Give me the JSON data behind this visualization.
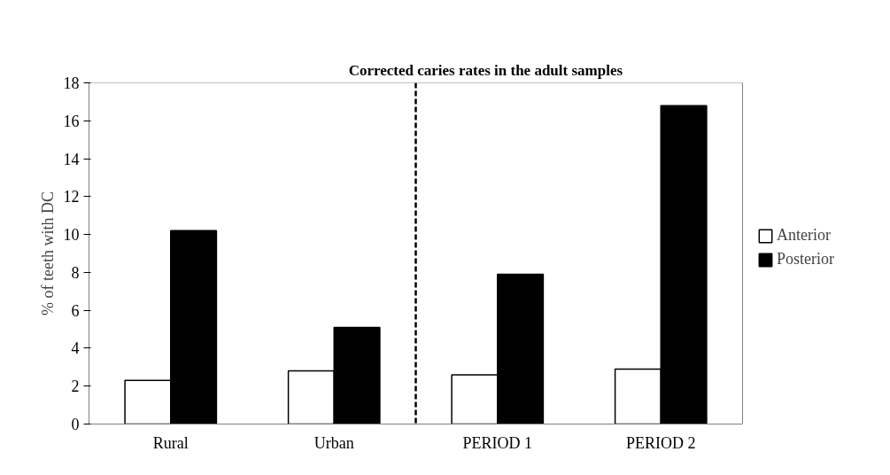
{
  "chart_data": {
    "type": "bar",
    "title": "Corrected caries rates in the adult  samples",
    "ylabel": "% of teeth with DC",
    "categories": [
      "Rural",
      "Urban",
      "PERIOD 1",
      "PERIOD 2"
    ],
    "series": [
      {
        "name": "Anterior",
        "color": "#ffffff",
        "values": [
          2.3,
          2.8,
          2.6,
          2.9
        ]
      },
      {
        "name": "Posterior",
        "color": "#000000",
        "values": [
          10.2,
          5.1,
          7.9,
          16.8
        ]
      }
    ],
    "ylim": [
      0,
      18
    ],
    "yticks": [
      0,
      2,
      4,
      6,
      8,
      10,
      12,
      14,
      16,
      18
    ],
    "grid": false,
    "legend": "right"
  }
}
